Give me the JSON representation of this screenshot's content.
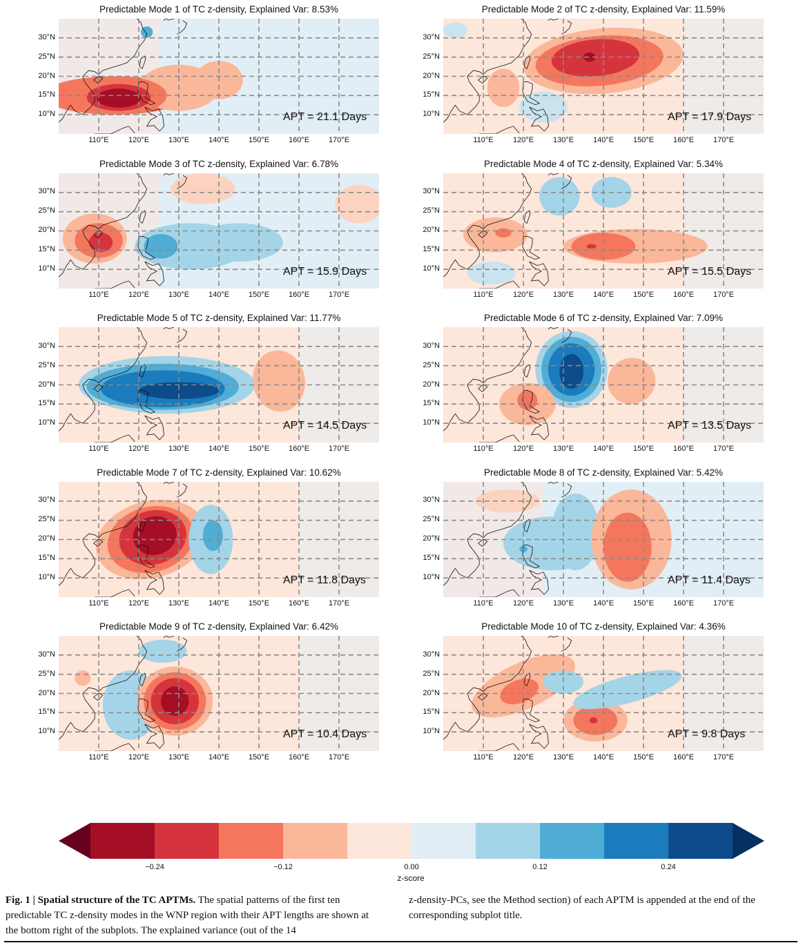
{
  "panels": [
    {
      "title": "Predictable Mode 1 of TC z-density, Explained Var: 8.53%",
      "apt": "APT = 21.1 Days",
      "blobs": [
        {
          "cx": 114,
          "cy": 15,
          "rx": 18,
          "ry": 5.0,
          "v": 0.12,
          "a": 0
        },
        {
          "cx": 130,
          "cy": 17,
          "rx": 10,
          "ry": 6.0,
          "v": 0.06,
          "a": 0
        },
        {
          "cx": 140,
          "cy": 19,
          "rx": 6,
          "ry": 5.0,
          "v": 0.06,
          "a": 0
        },
        {
          "cx": 115,
          "cy": 15,
          "rx": 12,
          "ry": 5.0,
          "v": 0.12,
          "a": 0
        },
        {
          "cx": 115,
          "cy": 14.5,
          "rx": 8,
          "ry": 3.5,
          "v": 0.18,
          "a": 0
        },
        {
          "cx": 115,
          "cy": 14.3,
          "rx": 5.5,
          "ry": 2.5,
          "v": 0.24,
          "a": 0
        },
        {
          "cx": 122,
          "cy": 31.5,
          "rx": 1.5,
          "ry": 1.5,
          "v": -0.12,
          "a": 0
        }
      ]
    },
    {
      "title": "Predictable Mode 2 of TC z-density, Explained Var: 11.59%",
      "apt": "APT = 17.9 Days",
      "blobs": [
        {
          "cx": 115,
          "cy": 17,
          "rx": 4,
          "ry": 5,
          "v": 0.06,
          "a": 0
        },
        {
          "cx": 140,
          "cy": 24,
          "rx": 20,
          "ry": 8.5,
          "v": 0.06,
          "a": -5
        },
        {
          "cx": 139,
          "cy": 24,
          "rx": 16,
          "ry": 6.5,
          "v": 0.12,
          "a": -5
        },
        {
          "cx": 138,
          "cy": 24.8,
          "rx": 11,
          "ry": 4.8,
          "v": 0.18,
          "a": -5
        },
        {
          "cx": 136.5,
          "cy": 25,
          "rx": 1.5,
          "ry": 1.2,
          "v": 0.24,
          "a": 0
        },
        {
          "cx": 103,
          "cy": 32,
          "rx": 3,
          "ry": 2,
          "v": -0.03,
          "a": 0
        },
        {
          "cx": 125,
          "cy": 12,
          "rx": 6,
          "ry": 4,
          "v": -0.03,
          "a": 0
        }
      ]
    },
    {
      "title": "Predictable Mode 3 of TC z-density, Explained Var: 6.78%",
      "apt": "APT = 15.9 Days",
      "blobs": [
        {
          "cx": 109,
          "cy": 18,
          "rx": 8,
          "ry": 6.5,
          "v": 0.06,
          "a": 0
        },
        {
          "cx": 110,
          "cy": 17.5,
          "rx": 6,
          "ry": 4.5,
          "v": 0.12,
          "a": 0
        },
        {
          "cx": 110.5,
          "cy": 17,
          "rx": 3,
          "ry": 2.5,
          "v": 0.18,
          "a": 0
        },
        {
          "cx": 133,
          "cy": 16,
          "rx": 14,
          "ry": 6,
          "v": -0.06,
          "a": 0
        },
        {
          "cx": 145,
          "cy": 17,
          "rx": 11,
          "ry": 5,
          "v": -0.06,
          "a": 0
        },
        {
          "cx": 125.5,
          "cy": 16,
          "rx": 4.2,
          "ry": 3.2,
          "v": -0.12,
          "a": 0
        },
        {
          "cx": 175,
          "cy": 27,
          "rx": 6,
          "ry": 5,
          "v": 0.03,
          "a": 0
        },
        {
          "cx": 136,
          "cy": 31,
          "rx": 8,
          "ry": 4,
          "v": 0.03,
          "a": 0
        }
      ]
    },
    {
      "title": "Predictable Mode 4 of TC z-density, Explained Var: 5.34%",
      "apt": "APT = 15.5 Days",
      "blobs": [
        {
          "cx": 113,
          "cy": 19,
          "rx": 8,
          "ry": 4.5,
          "v": 0.06,
          "a": 0
        },
        {
          "cx": 115,
          "cy": 19.5,
          "rx": 2,
          "ry": 1.2,
          "v": 0.12,
          "a": 0
        },
        {
          "cx": 148,
          "cy": 16,
          "rx": 18,
          "ry": 4.5,
          "v": 0.06,
          "a": 0
        },
        {
          "cx": 140,
          "cy": 16,
          "rx": 8,
          "ry": 3.5,
          "v": 0.12,
          "a": 0
        },
        {
          "cx": 137,
          "cy": 16,
          "rx": 1.2,
          "ry": 0.6,
          "v": 0.18,
          "a": 0
        },
        {
          "cx": 129,
          "cy": 29,
          "rx": 5,
          "ry": 5,
          "v": -0.06,
          "a": 0
        },
        {
          "cx": 142,
          "cy": 30,
          "rx": 5,
          "ry": 4,
          "v": -0.06,
          "a": 0
        },
        {
          "cx": 112,
          "cy": 9,
          "rx": 6,
          "ry": 3,
          "v": -0.03,
          "a": 0
        }
      ]
    },
    {
      "title": "Predictable Mode 5 of TC z-density, Explained Var: 11.77%",
      "apt": "APT = 14.5 Days",
      "blobs": [
        {
          "cx": 127,
          "cy": 20,
          "rx": 22,
          "ry": 7.5,
          "v": -0.06,
          "a": 0
        },
        {
          "cx": 126,
          "cy": 19.5,
          "rx": 19,
          "ry": 6,
          "v": -0.12,
          "a": 0
        },
        {
          "cx": 126,
          "cy": 19,
          "rx": 15.5,
          "ry": 4.8,
          "v": -0.18,
          "a": 0
        },
        {
          "cx": 130,
          "cy": 18.5,
          "rx": 10,
          "ry": 2.2,
          "v": -0.24,
          "a": 0
        },
        {
          "cx": 155,
          "cy": 21,
          "rx": 6.5,
          "ry": 8,
          "v": 0.06,
          "a": -10
        }
      ]
    },
    {
      "title": "Predictable Mode 6 of TC z-density, Explained Var: 7.09%",
      "apt": "APT = 13.5 Days",
      "blobs": [
        {
          "cx": 132,
          "cy": 24,
          "rx": 9,
          "ry": 10,
          "v": -0.06,
          "a": 0
        },
        {
          "cx": 132,
          "cy": 24,
          "rx": 7.5,
          "ry": 8.5,
          "v": -0.12,
          "a": 0
        },
        {
          "cx": 132,
          "cy": 24,
          "rx": 5.8,
          "ry": 6.8,
          "v": -0.18,
          "a": 0
        },
        {
          "cx": 132,
          "cy": 23.5,
          "rx": 3,
          "ry": 4.5,
          "v": -0.24,
          "a": 0
        },
        {
          "cx": 121,
          "cy": 15,
          "rx": 7,
          "ry": 5.5,
          "v": 0.06,
          "a": 0
        },
        {
          "cx": 121,
          "cy": 16,
          "rx": 2.5,
          "ry": 2.5,
          "v": 0.12,
          "a": 0
        },
        {
          "cx": 147,
          "cy": 21,
          "rx": 6,
          "ry": 6,
          "v": 0.06,
          "a": -20
        }
      ]
    },
    {
      "title": "Predictable Mode 7 of TC z-density, Explained Var: 10.62%",
      "apt": "APT = 11.8 Days",
      "blobs": [
        {
          "cx": 123,
          "cy": 20,
          "rx": 14,
          "ry": 10,
          "v": 0.06,
          "a": -15
        },
        {
          "cx": 123,
          "cy": 20,
          "rx": 11,
          "ry": 8.5,
          "v": 0.12,
          "a": -15
        },
        {
          "cx": 123.5,
          "cy": 20.5,
          "rx": 8.5,
          "ry": 7,
          "v": 0.18,
          "a": -15
        },
        {
          "cx": 124,
          "cy": 21,
          "rx": 5.5,
          "ry": 5,
          "v": 0.24,
          "a": -15
        },
        {
          "cx": 138,
          "cy": 20,
          "rx": 5.5,
          "ry": 9,
          "v": -0.06,
          "a": 0
        },
        {
          "cx": 138.5,
          "cy": 21,
          "rx": 2.5,
          "ry": 4,
          "v": -0.12,
          "a": 0
        }
      ]
    },
    {
      "title": "Predictable Mode 8 of TC z-density, Explained Var: 5.42%",
      "apt": "APT = 11.4 Days",
      "blobs": [
        {
          "cx": 127,
          "cy": 19,
          "rx": 12,
          "ry": 7,
          "v": -0.06,
          "a": 0
        },
        {
          "cx": 133,
          "cy": 22,
          "rx": 6,
          "ry": 10,
          "v": -0.06,
          "a": 0
        },
        {
          "cx": 120,
          "cy": 17.5,
          "rx": 1,
          "ry": 0.8,
          "v": -0.12,
          "a": 0
        },
        {
          "cx": 147,
          "cy": 20,
          "rx": 10,
          "ry": 13,
          "v": 0.06,
          "a": 0
        },
        {
          "cx": 146,
          "cy": 18,
          "rx": 6,
          "ry": 9,
          "v": 0.12,
          "a": 0
        },
        {
          "cx": 116,
          "cy": 30,
          "rx": 8,
          "ry": 3,
          "v": 0.03,
          "a": 0
        }
      ]
    },
    {
      "title": "Predictable Mode 9 of TC z-density, Explained Var: 6.42%",
      "apt": "APT = 10.4 Days",
      "blobs": [
        {
          "cx": 118,
          "cy": 17,
          "rx": 7,
          "ry": 9,
          "v": -0.06,
          "a": 0
        },
        {
          "cx": 129,
          "cy": 18,
          "rx": 9.5,
          "ry": 9,
          "v": 0.06,
          "a": 0
        },
        {
          "cx": 129,
          "cy": 18,
          "rx": 7.8,
          "ry": 7.5,
          "v": 0.12,
          "a": 0
        },
        {
          "cx": 129,
          "cy": 18,
          "rx": 6,
          "ry": 6,
          "v": 0.18,
          "a": 0
        },
        {
          "cx": 129,
          "cy": 18,
          "rx": 3.5,
          "ry": 3.8,
          "v": 0.24,
          "a": 0
        },
        {
          "cx": 126,
          "cy": 31,
          "rx": 6,
          "ry": 3,
          "v": -0.06,
          "a": 0
        },
        {
          "cx": 106,
          "cy": 24,
          "rx": 2,
          "ry": 2,
          "v": 0.06,
          "a": 0
        }
      ]
    },
    {
      "title": "Predictable Mode 10 of TC z-density, Explained Var: 4.36%",
      "apt": "APT = 9.8 Days",
      "blobs": [
        {
          "cx": 120,
          "cy": 22,
          "rx": 14,
          "ry": 6,
          "v": 0.06,
          "a": -25
        },
        {
          "cx": 119,
          "cy": 20.5,
          "rx": 5,
          "ry": 3,
          "v": 0.12,
          "a": -20
        },
        {
          "cx": 138,
          "cy": 13,
          "rx": 8,
          "ry": 5.5,
          "v": 0.06,
          "a": 0
        },
        {
          "cx": 138,
          "cy": 13,
          "rx": 5.5,
          "ry": 3.8,
          "v": 0.12,
          "a": 0
        },
        {
          "cx": 137.5,
          "cy": 13,
          "rx": 1,
          "ry": 0.8,
          "v": 0.18,
          "a": 0
        },
        {
          "cx": 146,
          "cy": 21,
          "rx": 14,
          "ry": 3.5,
          "v": -0.06,
          "a": -15
        },
        {
          "cx": 130,
          "cy": 23,
          "rx": 5,
          "ry": 3,
          "v": -0.06,
          "a": 0
        }
      ]
    }
  ],
  "axes": {
    "lon_ticks": [
      "110°E",
      "120°E",
      "130°E",
      "140°E",
      "150°E",
      "160°E",
      "170°E"
    ],
    "lon_values": [
      110,
      120,
      130,
      140,
      150,
      160,
      170
    ],
    "lat_ticks": [
      "30°N",
      "25°N",
      "20°N",
      "15°N",
      "10°N"
    ],
    "lat_values": [
      30,
      25,
      20,
      15,
      10
    ],
    "lon_range": [
      100,
      180
    ],
    "lat_range": [
      5,
      35
    ]
  },
  "colorbar": {
    "label": "z-score",
    "tick_labels": [
      "−0.24",
      "−0.12",
      "0.00",
      "0.12",
      "0.24"
    ],
    "tick_values": [
      -0.24,
      -0.12,
      0.0,
      0.12,
      0.24
    ],
    "range": [
      -0.3,
      0.3
    ],
    "colors": [
      "#67001f",
      "#a50f26",
      "#d6343c",
      "#f4775d",
      "#fbb799",
      "#fde6da",
      "#e1eef5",
      "#a4d4e8",
      "#4fadd6",
      "#1a7bbd",
      "#0d4b8a",
      "#053061"
    ]
  },
  "caption": {
    "bold": "Fig. 1 | Spatial structure of the TC APTMs.",
    "col1": "The spatial patterns of the first ten predictable TC z-density modes in the WNP region with their APT lengths are shown at the bottom right of the subplots. The explained variance (out of the 14",
    "col2": "z-density-PCs, see the Method section) of each APTM is appended at the end of the corresponding subplot title."
  }
}
